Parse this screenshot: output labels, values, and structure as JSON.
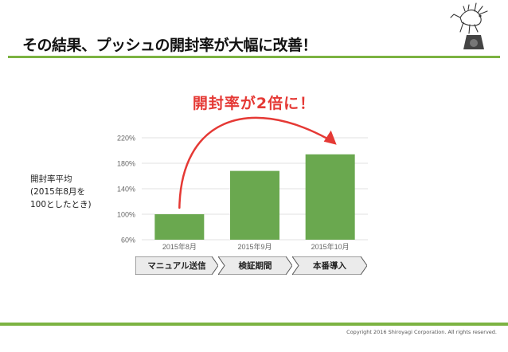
{
  "slide": {
    "title": "その結果、プッシュの開封率が大幅に改善！",
    "callout": "開封率が2倍に！",
    "side_note_lines": [
      "開封率平均",
      "(2015年8月を",
      "100としたとき)"
    ],
    "phases": [
      "マニュアル送信",
      "検証期間",
      "本番導入"
    ],
    "copyright": "Copyright 2016 Shiroyagi Corporation.  All rights reserved."
  },
  "colors": {
    "bar": "#6aa84f",
    "accent_green": "#7cb342",
    "arrow_red": "#e53935",
    "grid": "#e0e0e0",
    "axis_text": "#666666"
  },
  "chart_data": {
    "type": "bar",
    "categories": [
      "2015年8月",
      "2015年9月",
      "2015年10月"
    ],
    "values": [
      100,
      168,
      194
    ],
    "ylim": [
      60,
      220
    ],
    "yticks": [
      60,
      100,
      140,
      180,
      220
    ],
    "ytick_labels": [
      "60%",
      "100%",
      "140%",
      "180%",
      "220%"
    ],
    "grid": true,
    "title": "",
    "xlabel": "",
    "ylabel": ""
  }
}
